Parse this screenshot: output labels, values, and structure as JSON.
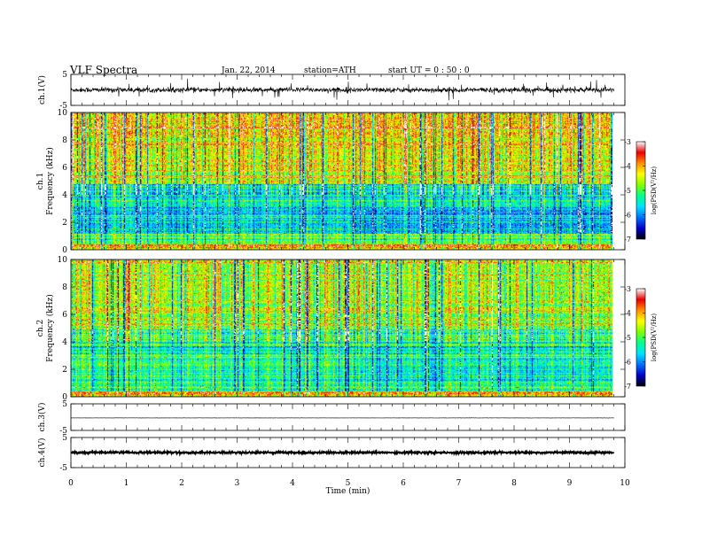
{
  "header": {
    "title": "VLF  Spectra",
    "date": "Jan. 22, 2014",
    "station": "station=ATH",
    "start": "start  UT  =   0 : 50 : 0"
  },
  "chart_data": [
    {
      "type": "line",
      "panel": "ch1-waveform",
      "ylabel": "ch.1(V)",
      "ylim": [
        -5,
        5
      ],
      "yticks": [
        "5",
        "-5"
      ],
      "xlim": [
        0,
        10
      ],
      "x_data_end": 9.8,
      "baseline": 0.0,
      "noise_amplitude": 0.8,
      "spike_amplitude": 3.2
    },
    {
      "type": "heatmap",
      "panel": "ch1-spectrogram",
      "ylabel": "ch.1\nFrequency  (kHz)",
      "ylabel_line1": "ch.1",
      "ylabel_line2": "Frequency  (kHz)",
      "ylim": [
        0,
        10
      ],
      "yticks": [
        "0",
        "2",
        "4",
        "6",
        "8",
        "10"
      ],
      "xlim": [
        0,
        10
      ],
      "x_data_end": 9.8,
      "colorbar": {
        "label": "log(PSD(V²/Hz)",
        "range": [
          -7,
          -3
        ],
        "ticks": [
          "-3",
          "-4",
          "-5",
          "-6",
          "-7"
        ],
        "colors": [
          "#000000",
          "#0000c8",
          "#0070ff",
          "#00e0ff",
          "#00ff90",
          "#80ff00",
          "#ffff00",
          "#ff9000",
          "#e80000",
          "#ffffff"
        ]
      },
      "description_levels": {
        "low_band_kHz": [
          0,
          1.2
        ],
        "quiet_band_kHz": [
          1.2,
          4.8
        ],
        "upper_band_kHz": [
          4.8,
          10
        ]
      }
    },
    {
      "type": "heatmap",
      "panel": "ch2-spectrogram",
      "ylabel": "ch.2\nFrequency  (kHz)",
      "ylabel_line1": "ch.2",
      "ylabel_line2": "Frequency  (kHz)",
      "ylim": [
        0,
        10
      ],
      "yticks": [
        "0",
        "2",
        "4",
        "6",
        "8",
        "10"
      ],
      "xlim": [
        0,
        10
      ],
      "x_data_end": 9.8,
      "colorbar": {
        "label": "log(PSD(V²/Hz)",
        "range": [
          -7,
          -3
        ],
        "ticks": [
          "-3",
          "-4",
          "-5",
          "-6",
          "-7"
        ],
        "colors": [
          "#000000",
          "#0000c8",
          "#0070ff",
          "#00e0ff",
          "#00ff90",
          "#80ff00",
          "#ffff00",
          "#ff9000",
          "#e80000",
          "#ffffff"
        ]
      }
    },
    {
      "type": "line",
      "panel": "ch3-waveform",
      "ylabel": "ch.3(V)",
      "ylim": [
        -5,
        5
      ],
      "yticks": [
        "5",
        "-5"
      ],
      "xlim": [
        0,
        10
      ],
      "x_data_end": 9.8,
      "baseline": -0.3,
      "noise_amplitude": 0.05
    },
    {
      "type": "line",
      "panel": "ch4-waveform",
      "ylabel": "ch.4(V)",
      "ylim": [
        -5,
        5
      ],
      "yticks": [
        "5",
        "-5"
      ],
      "xlim": [
        0,
        10
      ],
      "x_data_end": 9.8,
      "baseline": 0.0,
      "noise_amplitude": 0.35
    }
  ],
  "xaxis": {
    "label": "Time  (min)",
    "ticks": [
      "0",
      "1",
      "2",
      "3",
      "4",
      "5",
      "6",
      "7",
      "8",
      "9",
      "10"
    ],
    "range": [
      0,
      10
    ]
  }
}
